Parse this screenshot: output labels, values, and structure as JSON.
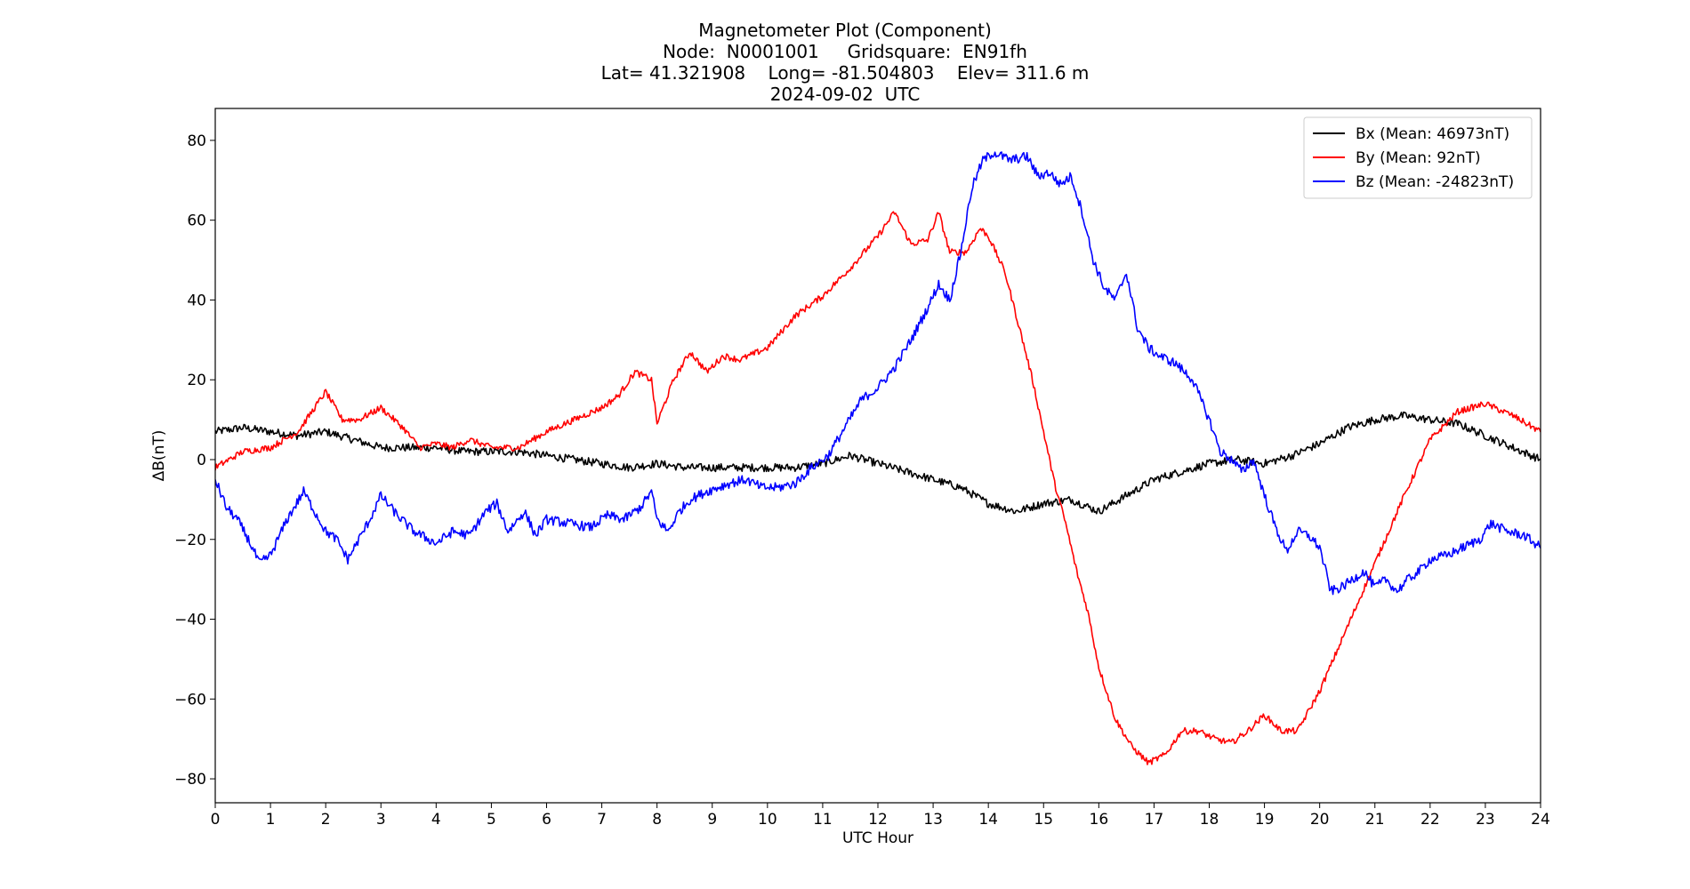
{
  "chart_data": {
    "type": "line",
    "title": "Magnetometer Plot (Component)",
    "subtitle_lines": [
      "Node:  N0001001     Gridsquare:  EN91fh",
      "Lat= 41.321908    Long= -81.504803    Elev= 311.6 m",
      "2024-09-02  UTC"
    ],
    "xlabel": "UTC Hour",
    "ylabel": "ΔB(nT)",
    "xlim": [
      0,
      24
    ],
    "ylim": [
      -86,
      88
    ],
    "xticks": [
      0,
      1,
      2,
      3,
      4,
      5,
      6,
      7,
      8,
      9,
      10,
      11,
      12,
      13,
      14,
      15,
      16,
      17,
      18,
      19,
      20,
      21,
      22,
      23,
      24
    ],
    "yticks": [
      -80,
      -60,
      -40,
      -20,
      0,
      20,
      40,
      60,
      80
    ],
    "ytick_labels": [
      "−80",
      "−60",
      "−40",
      "−20",
      "0",
      "20",
      "40",
      "60",
      "80"
    ],
    "grid": false,
    "legend_position": "top-right",
    "series": [
      {
        "name": "Bx (Mean: 46973nT)",
        "color": "#000000",
        "x": [
          0,
          0.5,
          1,
          1.5,
          2,
          2.5,
          3,
          3.5,
          4,
          4.5,
          5,
          5.5,
          6,
          6.5,
          7,
          7.5,
          8,
          8.5,
          9,
          9.5,
          10,
          10.5,
          11,
          11.5,
          12,
          12.5,
          13,
          13.5,
          14,
          14.5,
          15,
          15.5,
          16,
          16.5,
          17,
          17.5,
          18,
          18.5,
          19,
          19.5,
          20,
          20.5,
          21,
          21.5,
          22,
          22.5,
          23,
          23.5,
          24
        ],
        "y": [
          7,
          8,
          7,
          6,
          7,
          5,
          3,
          3,
          3,
          2,
          2,
          2,
          1,
          0,
          -1,
          -2,
          -1,
          -2,
          -2,
          -2,
          -2,
          -2,
          -1,
          1,
          -1,
          -3,
          -5,
          -7,
          -11,
          -13,
          -11,
          -10,
          -13,
          -9,
          -5,
          -3,
          -1,
          0,
          -1,
          1,
          4,
          8,
          10,
          11,
          10,
          9,
          6,
          3,
          0
        ]
      },
      {
        "name": "By (Mean: 92nT)",
        "color": "#ff0000",
        "x": [
          0,
          0.5,
          1,
          1.5,
          2,
          2.3,
          2.6,
          3,
          3.4,
          3.7,
          4,
          4.3,
          4.6,
          5,
          5.5,
          6,
          6.5,
          7,
          7.3,
          7.6,
          7.9,
          8,
          8.3,
          8.6,
          8.9,
          9.2,
          9.5,
          10,
          10.5,
          11,
          11.5,
          12,
          12.3,
          12.6,
          12.9,
          13.1,
          13.3,
          13.6,
          13.85,
          14,
          14.3,
          14.6,
          14.8,
          15,
          15.2,
          15.4,
          15.6,
          15.8,
          16,
          16.3,
          16.6,
          16.9,
          17.2,
          17.5,
          17.8,
          18.1,
          18.4,
          18.7,
          19,
          19.3,
          19.6,
          20,
          20.5,
          21,
          21.5,
          22,
          22.5,
          23,
          23.5,
          24
        ],
        "y": [
          -2,
          2,
          3,
          7,
          17,
          10,
          10,
          13,
          8,
          3,
          4,
          3,
          5,
          3,
          3,
          7,
          10,
          13,
          16,
          22,
          20,
          9,
          20,
          27,
          22,
          26,
          25,
          28,
          36,
          41,
          48,
          56,
          62,
          54,
          55,
          62,
          52,
          52,
          58,
          56,
          47,
          31,
          20,
          7,
          -6,
          -16,
          -28,
          -38,
          -52,
          -65,
          -72,
          -76,
          -74,
          -68,
          -68,
          -70,
          -71,
          -68,
          -64,
          -68,
          -68,
          -58,
          -42,
          -26,
          -10,
          5,
          12,
          14,
          11,
          7
        ]
      },
      {
        "name": "Bz (Mean: -24823nT)",
        "color": "#0000ff",
        "x": [
          0,
          0.2,
          0.4,
          0.6,
          0.8,
          1,
          1.3,
          1.6,
          1.8,
          2,
          2.2,
          2.4,
          2.6,
          2.8,
          3,
          3.3,
          3.6,
          4,
          4.3,
          4.6,
          4.9,
          5.1,
          5.3,
          5.6,
          5.8,
          6,
          6.4,
          6.8,
          7.1,
          7.4,
          7.7,
          7.9,
          8,
          8.2,
          8.4,
          8.6,
          8.9,
          9.1,
          9.3,
          9.6,
          9.9,
          10.2,
          10.5,
          10.8,
          11.1,
          11.4,
          11.7,
          12,
          12.3,
          12.6,
          12.9,
          13.1,
          13.3,
          13.5,
          13.7,
          13.9,
          14.1,
          14.4,
          14.7,
          14.9,
          15.1,
          15.3,
          15.5,
          15.7,
          15.9,
          16.1,
          16.3,
          16.5,
          16.7,
          16.9,
          17.1,
          17.4,
          17.7,
          18,
          18.2,
          18.4,
          18.6,
          18.8,
          19,
          19.2,
          19.4,
          19.6,
          19.8,
          20,
          20.2,
          20.4,
          20.6,
          20.8,
          21,
          21.2,
          21.4,
          21.6,
          21.8,
          22,
          22.3,
          22.6,
          22.9,
          23.1,
          23.4,
          23.7,
          24
        ],
        "y": [
          -5,
          -12,
          -15,
          -20,
          -26,
          -24,
          -15,
          -8,
          -13,
          -18,
          -20,
          -25,
          -20,
          -15,
          -9,
          -14,
          -18,
          -21,
          -18,
          -19,
          -13,
          -11,
          -18,
          -13,
          -19,
          -15,
          -16,
          -17,
          -14,
          -15,
          -12,
          -8,
          -15,
          -18,
          -13,
          -10,
          -8,
          -7,
          -6,
          -5,
          -7,
          -7,
          -6,
          -2,
          1,
          8,
          15,
          18,
          23,
          30,
          38,
          44,
          40,
          52,
          68,
          75,
          77,
          75,
          76,
          71,
          72,
          69,
          71,
          62,
          50,
          43,
          40,
          47,
          33,
          28,
          26,
          24,
          20,
          10,
          2,
          0,
          -3,
          0,
          -9,
          -17,
          -23,
          -18,
          -19,
          -22,
          -33,
          -32,
          -30,
          -28,
          -32,
          -30,
          -33,
          -30,
          -28,
          -25,
          -24,
          -22,
          -20,
          -16,
          -18,
          -19,
          -22
        ]
      }
    ]
  }
}
